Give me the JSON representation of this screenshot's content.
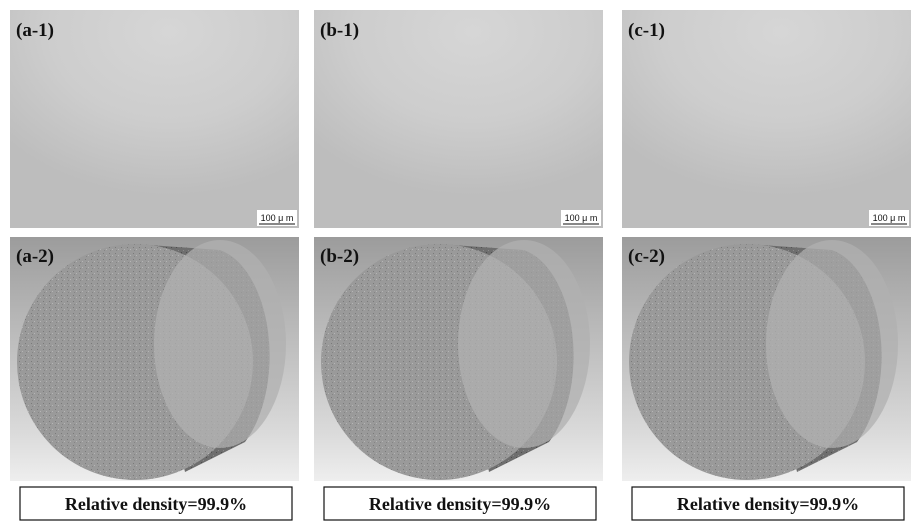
{
  "panels": [
    {
      "top_label": "(a-1)",
      "scale_bar": "100 μ m",
      "bottom_label": "(a-2)",
      "caption": "Relative density=99.9%"
    },
    {
      "top_label": "(b-1)",
      "scale_bar": "100 μ m",
      "bottom_label": "(b-2)",
      "caption": "Relative density=99.9%"
    },
    {
      "top_label": "(c-1)",
      "scale_bar": "100 μ m",
      "bottom_label": "(c-2)",
      "caption": "Relative density=99.9%"
    }
  ]
}
